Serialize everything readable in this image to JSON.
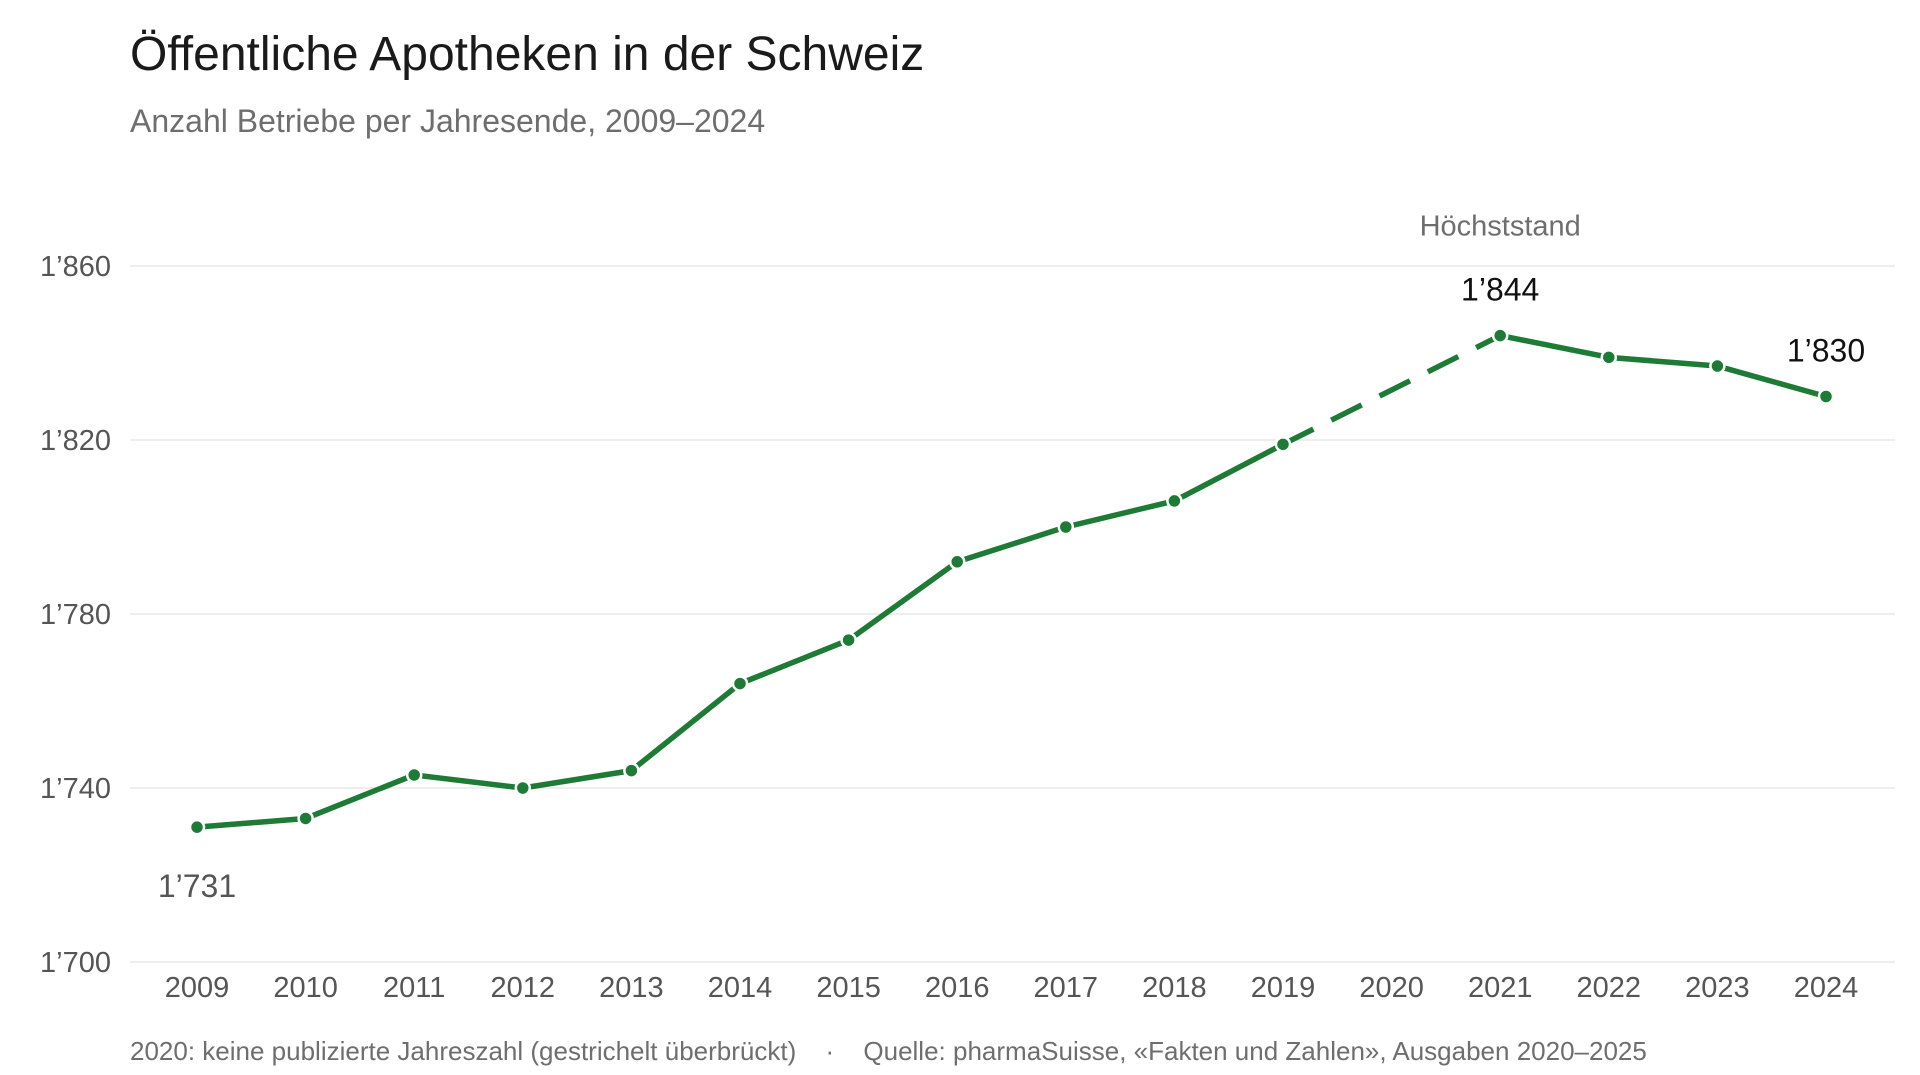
{
  "title": "Öffentliche Apotheken in der Schweiz",
  "subtitle": "Anzahl Betriebe per Jahresende, 2009–2024",
  "footer": {
    "note": "2020: keine publizierte Jahreszahl (gestrichelt überbrückt)",
    "separator": "·",
    "source": "Quelle: pharmaSuisse, «Fakten und Zahlen», Ausgaben 2020–2025"
  },
  "colors": {
    "line": "#1e7b36",
    "grid": "#e9e9e9"
  },
  "chart_data": {
    "type": "line",
    "title": "Öffentliche Apotheken in der Schweiz",
    "subtitle": "Anzahl Betriebe per Jahresende, 2009–2024",
    "xlabel": "",
    "ylabel": "",
    "categories": [
      "2009",
      "2010",
      "2011",
      "2012",
      "2013",
      "2014",
      "2015",
      "2016",
      "2017",
      "2018",
      "2019",
      "2020",
      "2021",
      "2022",
      "2023",
      "2024"
    ],
    "values": [
      1731,
      1733,
      1743,
      1740,
      1744,
      1764,
      1774,
      1792,
      1800,
      1806,
      1819,
      null,
      1844,
      1839,
      1837,
      1830
    ],
    "ylim": [
      1700,
      1860
    ],
    "yticks": [
      1700,
      1740,
      1780,
      1820,
      1860
    ],
    "ytick_labels": [
      "1’700",
      "1’740",
      "1’780",
      "1’820",
      "1’860"
    ],
    "grid": true,
    "gap_bridged_dashed": "2020",
    "annotations": [
      {
        "category": "2009",
        "label": "1’731",
        "position": "below"
      },
      {
        "category": "2021",
        "label": "1’844",
        "caption": "Höchststand",
        "position": "above"
      },
      {
        "category": "2024",
        "label": "1’830",
        "position": "above"
      }
    ]
  }
}
